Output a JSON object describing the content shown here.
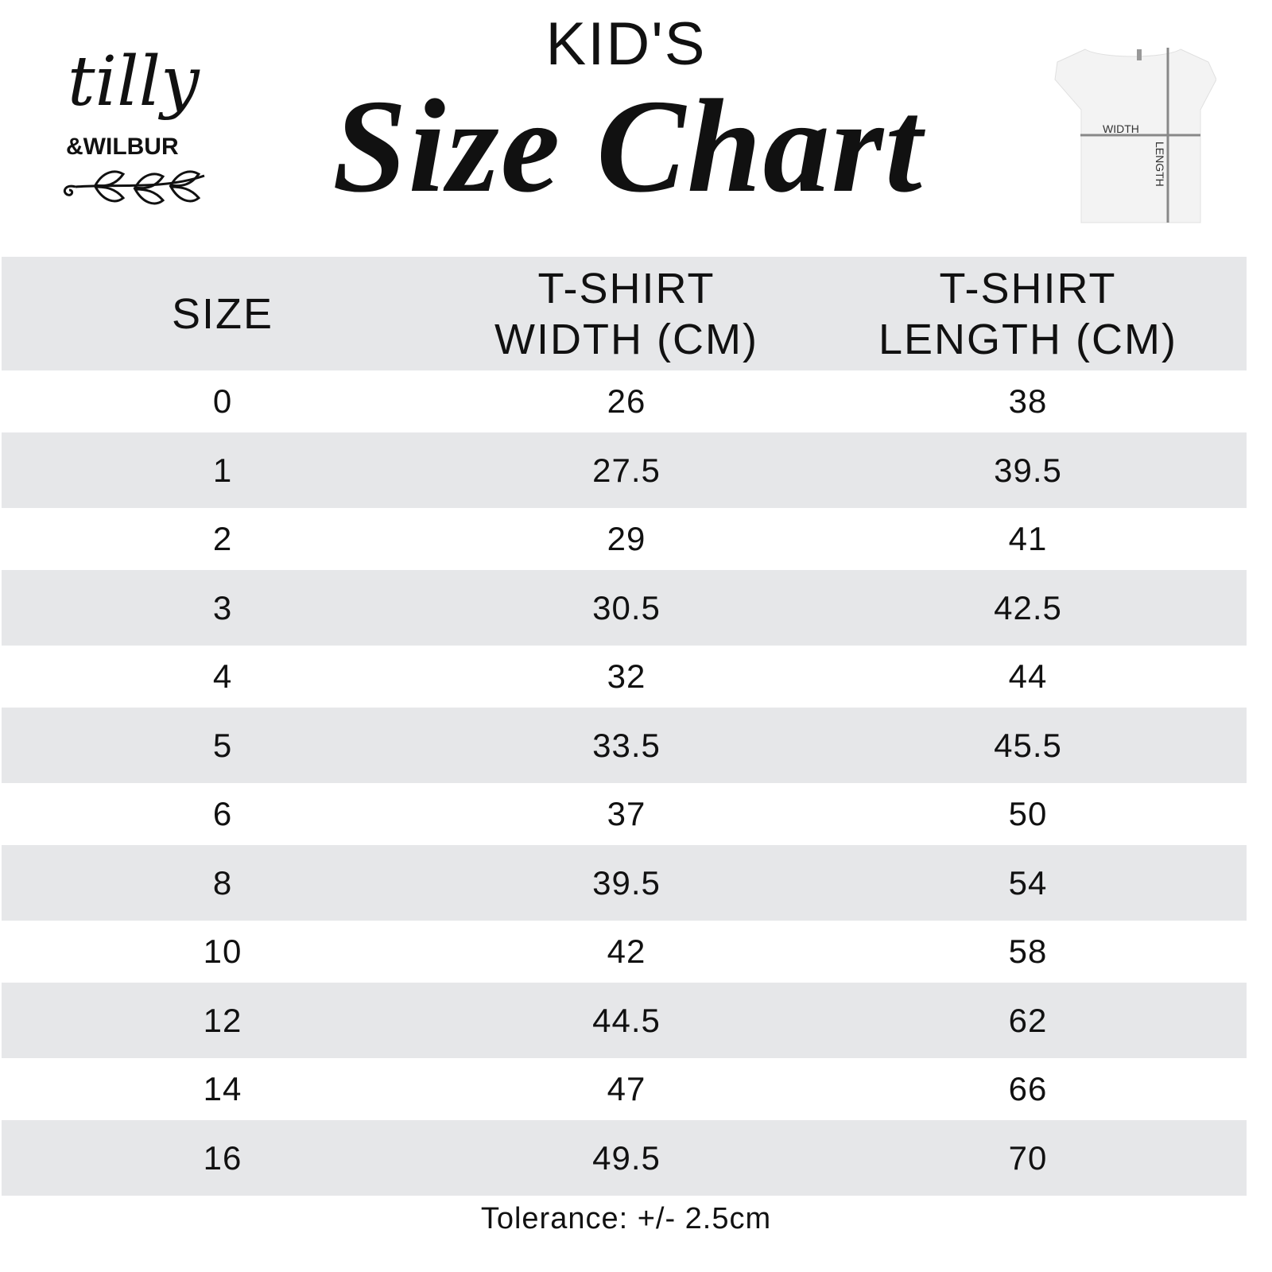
{
  "header": {
    "subtitle": "KID'S",
    "title": "Size Chart",
    "logo": {
      "script": "tilly",
      "sub": "&WILBUR"
    },
    "diagram": {
      "width_label": "WIDTH",
      "length_label": "LENGTH"
    }
  },
  "table": {
    "columns": [
      "SIZE",
      "T-SHIRT WIDTH (CM)",
      "T-SHIRT LENGTH (CM)"
    ],
    "column_lines": [
      [
        "SIZE"
      ],
      [
        "T-SHIRT",
        "WIDTH (CM)"
      ],
      [
        "T-SHIRT",
        "LENGTH (CM)"
      ]
    ],
    "rows": [
      [
        "0",
        "26",
        "38"
      ],
      [
        "1",
        "27.5",
        "39.5"
      ],
      [
        "2",
        "29",
        "41"
      ],
      [
        "3",
        "30.5",
        "42.5"
      ],
      [
        "4",
        "32",
        "44"
      ],
      [
        "5",
        "33.5",
        "45.5"
      ],
      [
        "6",
        "37",
        "50"
      ],
      [
        "8",
        "39.5",
        "54"
      ],
      [
        "10",
        "42",
        "58"
      ],
      [
        "12",
        "44.5",
        "62"
      ],
      [
        "14",
        "47",
        "66"
      ],
      [
        "16",
        "49.5",
        "70"
      ]
    ]
  },
  "footer": {
    "tolerance": "Tolerance: +/- 2.5cm"
  },
  "colors": {
    "row_stripe": "#e6e7e9",
    "text": "#111111"
  }
}
